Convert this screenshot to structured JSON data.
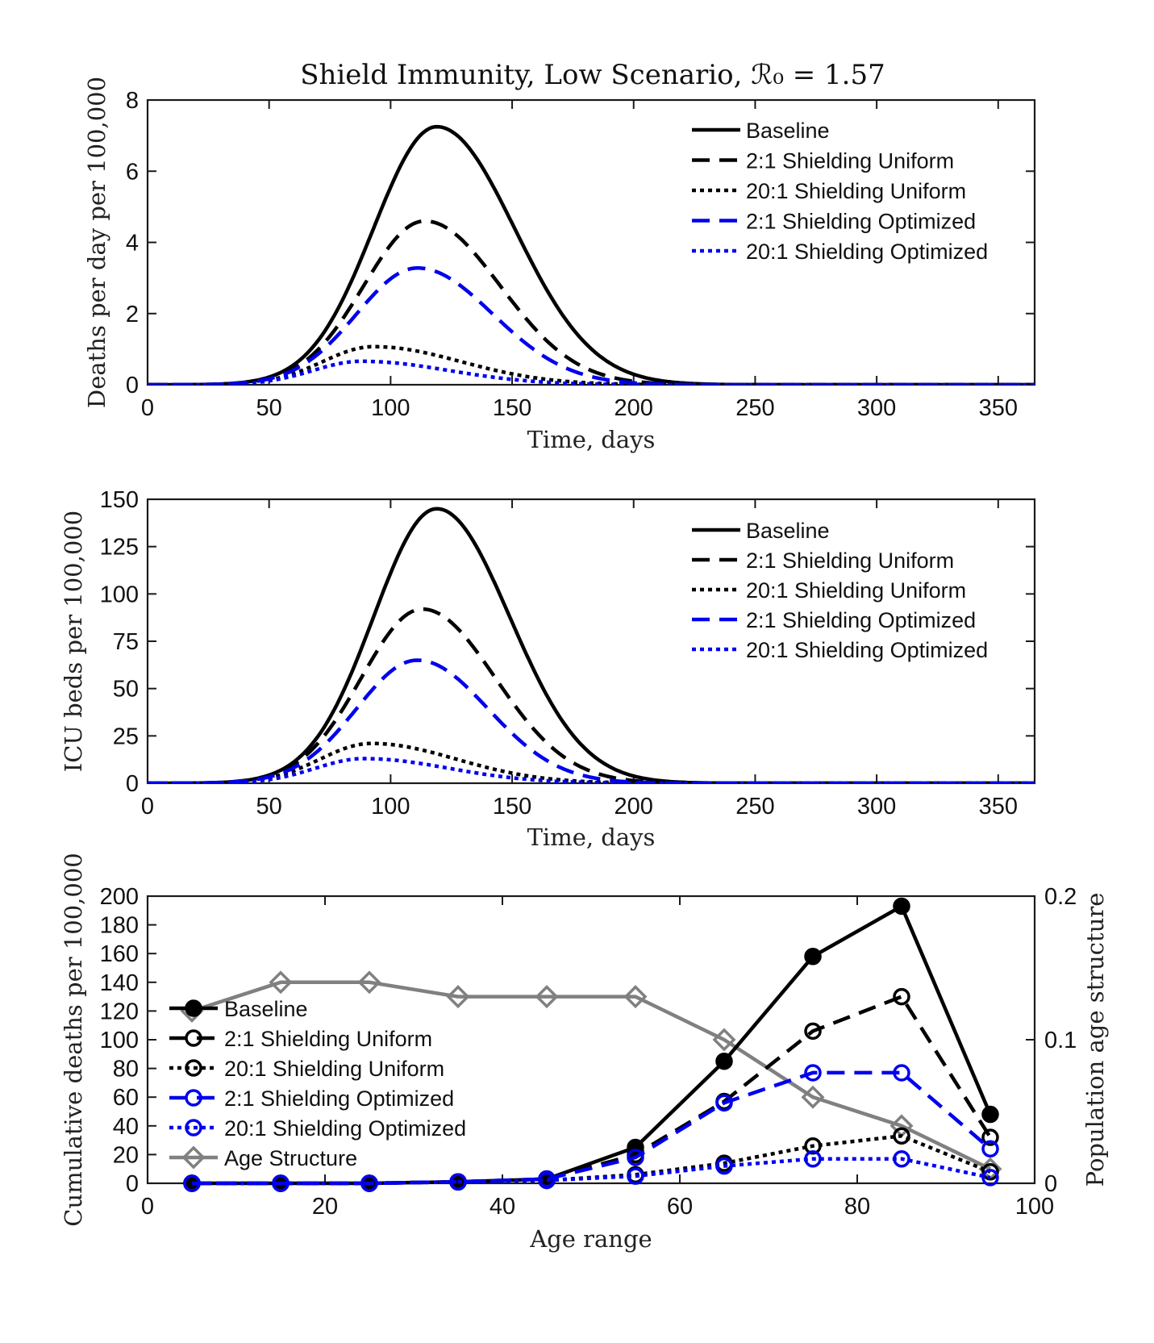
{
  "figure": {
    "title": "Shield Immunity, Low Scenario, ℛ₀ = 1.57"
  },
  "colors": {
    "black": "#000000",
    "blue": "#0000ee",
    "gray": "#808080"
  },
  "chart_data": [
    {
      "type": "line",
      "title": "Shield Immunity, Low Scenario, ℛ₀ = 1.57",
      "xlabel": "Time, days",
      "ylabel": "Deaths per day per 100,000",
      "xlim": [
        0,
        365
      ],
      "ylim": [
        0,
        8
      ],
      "xticks": [
        0,
        50,
        100,
        150,
        200,
        250,
        300,
        350
      ],
      "yticks": [
        0,
        2,
        4,
        6,
        8
      ],
      "legend_position": "top-right",
      "series": [
        {
          "name": "Baseline",
          "peak": 7.25,
          "peak_day": 119,
          "rise": 26,
          "fall": 32,
          "color": "#000000",
          "style": "solid"
        },
        {
          "name": "2:1 Shielding Uniform",
          "peak": 4.6,
          "peak_day": 114,
          "rise": 25,
          "fall": 31,
          "color": "#000000",
          "style": "dashed"
        },
        {
          "name": "20:1 Shielding Uniform",
          "peak": 1.07,
          "peak_day": 93,
          "rise": 21,
          "fall": 36,
          "color": "#000000",
          "style": "dotted"
        },
        {
          "name": "2:1 Shielding Optimized",
          "peak": 3.28,
          "peak_day": 111,
          "rise": 25,
          "fall": 31,
          "color": "#0000ee",
          "style": "dashed"
        },
        {
          "name": "20:1 Shielding Optimized",
          "peak": 0.66,
          "peak_day": 88,
          "rise": 20,
          "fall": 36,
          "color": "#0000ee",
          "style": "dotted"
        }
      ]
    },
    {
      "type": "line",
      "xlabel": "Time, days",
      "ylabel": "ICU beds per 100,000",
      "xlim": [
        0,
        365
      ],
      "ylim": [
        0,
        150
      ],
      "xticks": [
        0,
        50,
        100,
        150,
        200,
        250,
        300,
        350
      ],
      "yticks": [
        0,
        25,
        50,
        75,
        100,
        125,
        150
      ],
      "legend_position": "top-right",
      "series": [
        {
          "name": "Baseline",
          "peak": 145,
          "peak_day": 119,
          "rise": 26,
          "fall": 30,
          "color": "#000000",
          "style": "solid"
        },
        {
          "name": "2:1 Shielding Uniform",
          "peak": 92,
          "peak_day": 113,
          "rise": 25,
          "fall": 30,
          "color": "#000000",
          "style": "dashed"
        },
        {
          "name": "20:1 Shielding Uniform",
          "peak": 21,
          "peak_day": 92,
          "rise": 21,
          "fall": 35,
          "color": "#000000",
          "style": "dotted"
        },
        {
          "name": "2:1 Shielding Optimized",
          "peak": 65,
          "peak_day": 111,
          "rise": 25,
          "fall": 29,
          "color": "#0000ee",
          "style": "dashed"
        },
        {
          "name": "20:1 Shielding Optimized",
          "peak": 13,
          "peak_day": 89,
          "rise": 20,
          "fall": 35,
          "color": "#0000ee",
          "style": "dotted"
        }
      ]
    },
    {
      "type": "line",
      "xlabel": "Age range",
      "ylabel": "Cumulative deaths per 100,000",
      "y2label": "Population age structure",
      "xlim": [
        0,
        100
      ],
      "ylim": [
        0,
        200
      ],
      "y2lim": [
        0,
        0.2
      ],
      "xticks": [
        0,
        20,
        40,
        60,
        80,
        100
      ],
      "yticks": [
        0,
        20,
        40,
        60,
        80,
        100,
        120,
        140,
        160,
        180,
        200
      ],
      "y2ticks": [
        0,
        0.1,
        0.2
      ],
      "y2ticklabels": [
        "0",
        "0.1",
        "0.2"
      ],
      "legend_position": "center-left",
      "x": [
        5,
        15,
        25,
        35,
        45,
        55,
        65,
        75,
        85,
        95
      ],
      "series": [
        {
          "name": "Baseline",
          "values": [
            0,
            0,
            0,
            1,
            3,
            25,
            85,
            158,
            193,
            48
          ],
          "color": "#000000",
          "style": "solid",
          "marker": "filled-circle",
          "axis": "left"
        },
        {
          "name": "2:1 Shielding Uniform",
          "values": [
            0,
            0,
            0,
            1,
            3,
            20,
            57,
            106,
            130,
            32
          ],
          "color": "#000000",
          "style": "dashed",
          "marker": "open-circle",
          "axis": "left"
        },
        {
          "name": "20:1 Shielding Uniform",
          "values": [
            0,
            0,
            0,
            1,
            2,
            6,
            14,
            26,
            33,
            8
          ],
          "color": "#000000",
          "style": "dotted",
          "marker": "open-circle",
          "axis": "left"
        },
        {
          "name": "2:1 Shielding Optimized",
          "values": [
            0,
            0,
            0,
            1,
            3,
            18,
            56,
            77,
            77,
            24
          ],
          "color": "#0000ee",
          "style": "dashed",
          "marker": "open-circle",
          "axis": "left"
        },
        {
          "name": "20:1 Shielding Optimized",
          "values": [
            0,
            0,
            0,
            1,
            2,
            5,
            12,
            17,
            17,
            4
          ],
          "color": "#0000ee",
          "style": "dotted",
          "marker": "open-circle",
          "axis": "left"
        },
        {
          "name": "Age Structure",
          "values": [
            0.12,
            0.14,
            0.14,
            0.13,
            0.13,
            0.13,
            0.1,
            0.06,
            0.04,
            0.01
          ],
          "color": "#808080",
          "style": "solid",
          "marker": "diamond",
          "axis": "right"
        }
      ]
    }
  ]
}
